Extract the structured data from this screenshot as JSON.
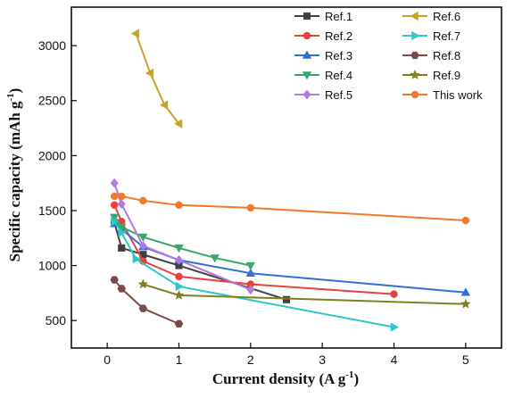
{
  "chart_data": {
    "type": "line",
    "xlabel": "Current density (A g",
    "xlabel_sup": "-1",
    "xlabel_end": ")",
    "ylabel": "Specific capacity (mAh g",
    "ylabel_sup": "-1",
    "ylabel_end": ")",
    "xlim": [
      -0.5,
      5.5
    ],
    "ylim": [
      250,
      3350
    ],
    "xticks": [
      0,
      1,
      2,
      3,
      4,
      5
    ],
    "yticks": [
      500,
      1000,
      1500,
      2000,
      2500,
      3000
    ],
    "xtick_labels": [
      "0",
      "1",
      "2",
      "3",
      "4",
      "5"
    ],
    "ytick_labels": [
      "500",
      "1000",
      "1500",
      "2000",
      "2500",
      "3000"
    ],
    "grid": false,
    "legend_position": "top-right",
    "series": [
      {
        "name": "Ref.1",
        "color": "#404040",
        "marker": "square",
        "x": [
          0.1,
          0.2,
          0.5,
          1,
          2.5
        ],
        "y": [
          1390,
          1160,
          1100,
          1000,
          690
        ]
      },
      {
        "name": "Ref.2",
        "color": "#e8413c",
        "marker": "circle",
        "x": [
          0.1,
          0.2,
          0.5,
          1,
          2,
          4
        ],
        "y": [
          1550,
          1400,
          1040,
          900,
          830,
          740
        ]
      },
      {
        "name": "Ref.3",
        "color": "#2f6fd6",
        "marker": "triangle-up",
        "x": [
          0.1,
          0.2,
          0.5,
          1,
          2,
          5
        ],
        "y": [
          1380,
          1330,
          1170,
          1050,
          930,
          755
        ]
      },
      {
        "name": "Ref.4",
        "color": "#3aa76d",
        "marker": "triangle-down",
        "x": [
          0.1,
          0.2,
          0.5,
          1,
          1.5,
          2
        ],
        "y": [
          1440,
          1350,
          1260,
          1160,
          1070,
          1000
        ]
      },
      {
        "name": "Ref.5",
        "color": "#b07be0",
        "marker": "diamond",
        "x": [
          0.1,
          0.2,
          0.5,
          1,
          2
        ],
        "y": [
          1750,
          1560,
          1180,
          1050,
          780
        ]
      },
      {
        "name": "Ref.6",
        "color": "#c9a227",
        "marker": "triangle-left",
        "x": [
          0.4,
          0.6,
          0.8,
          1
        ],
        "y": [
          3110,
          2750,
          2460,
          2290
        ]
      },
      {
        "name": "Ref.7",
        "color": "#2cc7c7",
        "marker": "triangle-right",
        "x": [
          0.1,
          0.2,
          0.4,
          1,
          4
        ],
        "y": [
          1400,
          1300,
          1060,
          810,
          440
        ]
      },
      {
        "name": "Ref.8",
        "color": "#7a4a4a",
        "marker": "hexagon",
        "x": [
          0.1,
          0.2,
          0.5,
          1
        ],
        "y": [
          870,
          790,
          610,
          470
        ]
      },
      {
        "name": "Ref.9",
        "color": "#7f7f20",
        "marker": "star",
        "x": [
          0.5,
          1,
          5
        ],
        "y": [
          830,
          730,
          650
        ]
      },
      {
        "name": "This work",
        "color": "#f07a2a",
        "marker": "circle",
        "x": [
          0.1,
          0.2,
          0.5,
          1,
          2,
          5
        ],
        "y": [
          1630,
          1630,
          1590,
          1550,
          1525,
          1410
        ]
      }
    ]
  }
}
